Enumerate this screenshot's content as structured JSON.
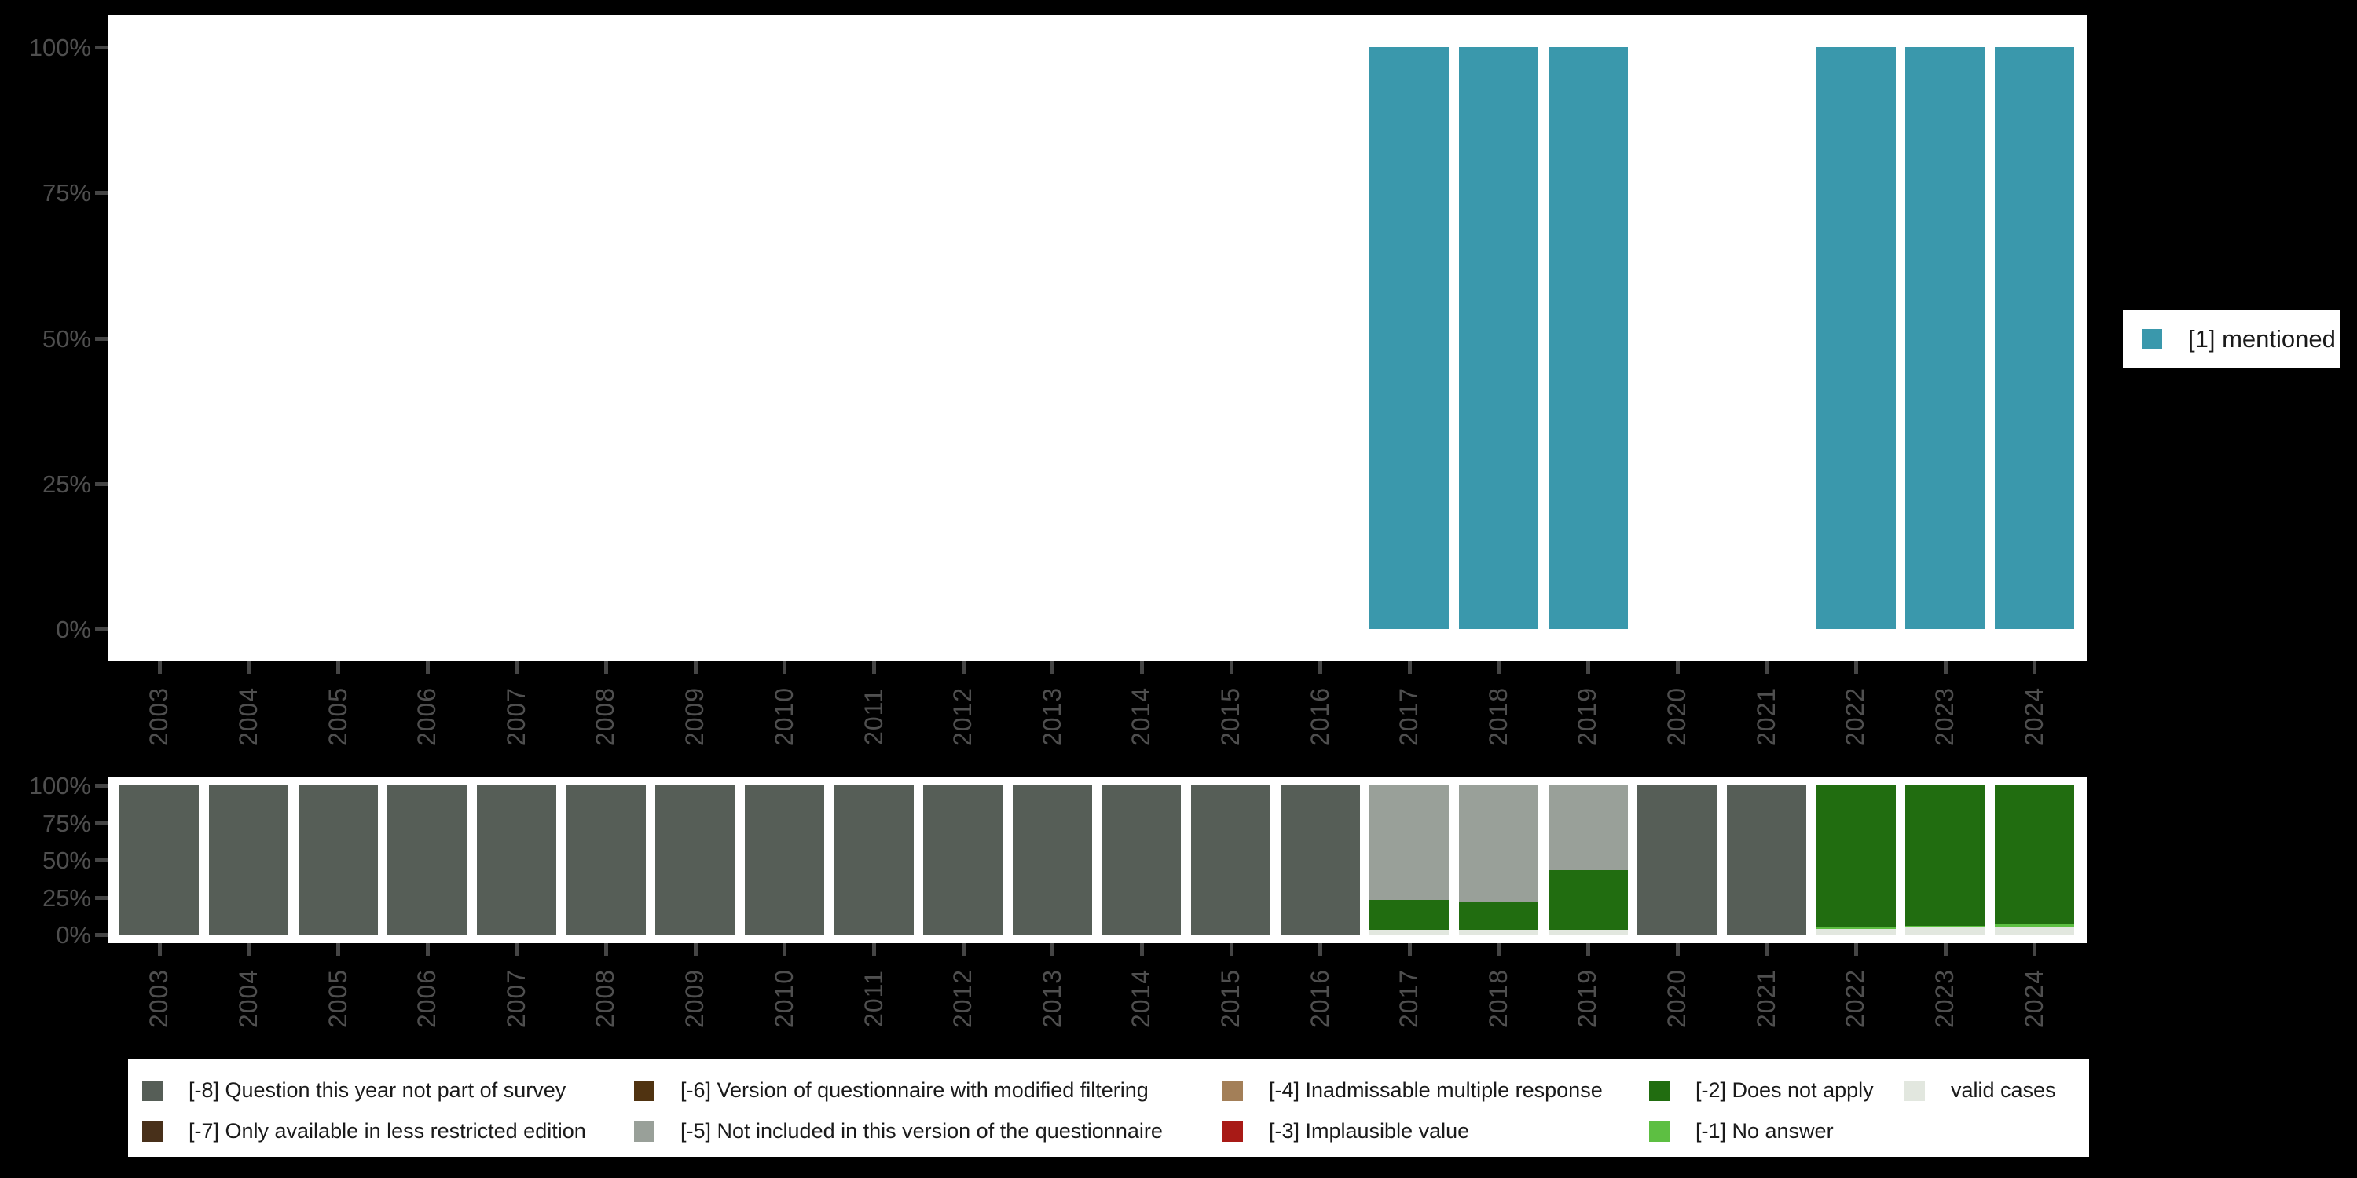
{
  "colors": {
    "background": "#000000",
    "panel": "#ffffff",
    "axis_text": "#4f4f4f",
    "tick": "#454545",
    "legend_text": "#1a1a1a",
    "mentioned": "#3a98ac"
  },
  "top_legend": {
    "label": "[1] mentioned",
    "color": "#3a98ac"
  },
  "missing_legend": {
    "columns": [
      [
        {
          "label": "[-8] Question this year not part of survey",
          "color": "#565e57"
        },
        {
          "label": "[-7] Only available in less restricted edition",
          "color": "#48301a"
        }
      ],
      [
        {
          "label": "[-6] Version of questionnaire with modified filtering",
          "color": "#503311"
        },
        {
          "label": "[-5] Not included in this version of the questionnaire",
          "color": "#99a099"
        }
      ],
      [
        {
          "label": "[-4] Inadmissable multiple response",
          "color": "#a37f58"
        },
        {
          "label": "[-3] Implausible value",
          "color": "#a81a16"
        }
      ],
      [
        {
          "label": "[-2] Does not apply",
          "color": "#216d10"
        },
        {
          "label": "[-1] No answer",
          "color": "#5dbf42"
        }
      ],
      [
        {
          "label": "valid cases",
          "color": "#e2e7df"
        }
      ]
    ]
  },
  "chart_data": [
    {
      "type": "bar",
      "title": "",
      "categories": [
        "2003",
        "2004",
        "2005",
        "2006",
        "2007",
        "2008",
        "2009",
        "2010",
        "2011",
        "2012",
        "2013",
        "2014",
        "2015",
        "2016",
        "2017",
        "2018",
        "2019",
        "2020",
        "2021",
        "2022",
        "2023",
        "2024"
      ],
      "xlabel": "",
      "ylabel": "",
      "ylim": [
        0,
        100
      ],
      "ytick_labels": [
        "100%",
        "75%",
        "50%",
        "25%",
        "0%"
      ],
      "grid": false,
      "legend_position": "right",
      "series": [
        {
          "name": "[1] mentioned",
          "color": "#3a98ac",
          "values": [
            null,
            null,
            null,
            null,
            null,
            null,
            null,
            null,
            null,
            null,
            null,
            null,
            null,
            null,
            100,
            100,
            100,
            null,
            null,
            100,
            100,
            100
          ]
        }
      ]
    },
    {
      "type": "stacked_bar",
      "title": "",
      "categories": [
        "2003",
        "2004",
        "2005",
        "2006",
        "2007",
        "2008",
        "2009",
        "2010",
        "2011",
        "2012",
        "2013",
        "2014",
        "2015",
        "2016",
        "2017",
        "2018",
        "2019",
        "2020",
        "2021",
        "2022",
        "2023",
        "2024"
      ],
      "xlabel": "",
      "ylabel": "",
      "ylim": [
        0,
        100
      ],
      "ytick_labels": [
        "100%",
        "75%",
        "50%",
        "25%",
        "0%"
      ],
      "grid": false,
      "stack_order": "top_to_bottom",
      "legend_position": "bottom",
      "series": [
        {
          "name": "[-8] Question this year not part of survey",
          "color": "#565e57",
          "values": [
            100,
            100,
            100,
            100,
            100,
            100,
            100,
            100,
            100,
            100,
            100,
            100,
            100,
            100,
            0,
            0,
            0,
            100,
            100,
            0,
            0,
            0
          ]
        },
        {
          "name": "[-7] Only available in less restricted edition",
          "color": "#48301a",
          "values": [
            0,
            0,
            0,
            0,
            0,
            0,
            0,
            0,
            0,
            0,
            0,
            0,
            0,
            0,
            0,
            0,
            0,
            0,
            0,
            0,
            0,
            0
          ]
        },
        {
          "name": "[-6] Version of questionnaire with modified filtering",
          "color": "#503311",
          "values": [
            0,
            0,
            0,
            0,
            0,
            0,
            0,
            0,
            0,
            0,
            0,
            0,
            0,
            0,
            0,
            0,
            0,
            0,
            0,
            0,
            0,
            0
          ]
        },
        {
          "name": "[-5] Not included in this version of the questionnaire",
          "color": "#99a099",
          "values": [
            0,
            0,
            0,
            0,
            0,
            0,
            0,
            0,
            0,
            0,
            0,
            0,
            0,
            0,
            77,
            78,
            57,
            0,
            0,
            0,
            0,
            0
          ]
        },
        {
          "name": "[-4] Inadmissable multiple response",
          "color": "#a37f58",
          "values": [
            0,
            0,
            0,
            0,
            0,
            0,
            0,
            0,
            0,
            0,
            0,
            0,
            0,
            0,
            0,
            0,
            0,
            0,
            0,
            0,
            0,
            0
          ]
        },
        {
          "name": "[-3] Implausible value",
          "color": "#a81a16",
          "values": [
            0,
            0,
            0,
            0,
            0,
            0,
            0,
            0,
            0,
            0,
            0,
            0,
            0,
            0,
            0,
            0,
            0,
            0,
            0,
            0,
            0,
            0
          ]
        },
        {
          "name": "[-2] Does not apply",
          "color": "#216d10",
          "values": [
            0,
            0,
            0,
            0,
            0,
            0,
            0,
            0,
            0,
            0,
            0,
            0,
            0,
            0,
            20,
            19,
            40,
            0,
            0,
            95,
            94,
            93
          ]
        },
        {
          "name": "[-1] No answer",
          "color": "#5dbf42",
          "values": [
            0,
            0,
            0,
            0,
            0,
            0,
            0,
            0,
            0,
            0,
            0,
            0,
            0,
            0,
            0,
            0,
            0,
            0,
            0,
            1.5,
            1.5,
            1.5
          ]
        },
        {
          "name": "valid cases",
          "color": "#e2e7df",
          "values": [
            0,
            0,
            0,
            0,
            0,
            0,
            0,
            0,
            0,
            0,
            0,
            0,
            0,
            0,
            3,
            3,
            3,
            0,
            0,
            3.5,
            4.5,
            5.5
          ]
        }
      ]
    }
  ]
}
